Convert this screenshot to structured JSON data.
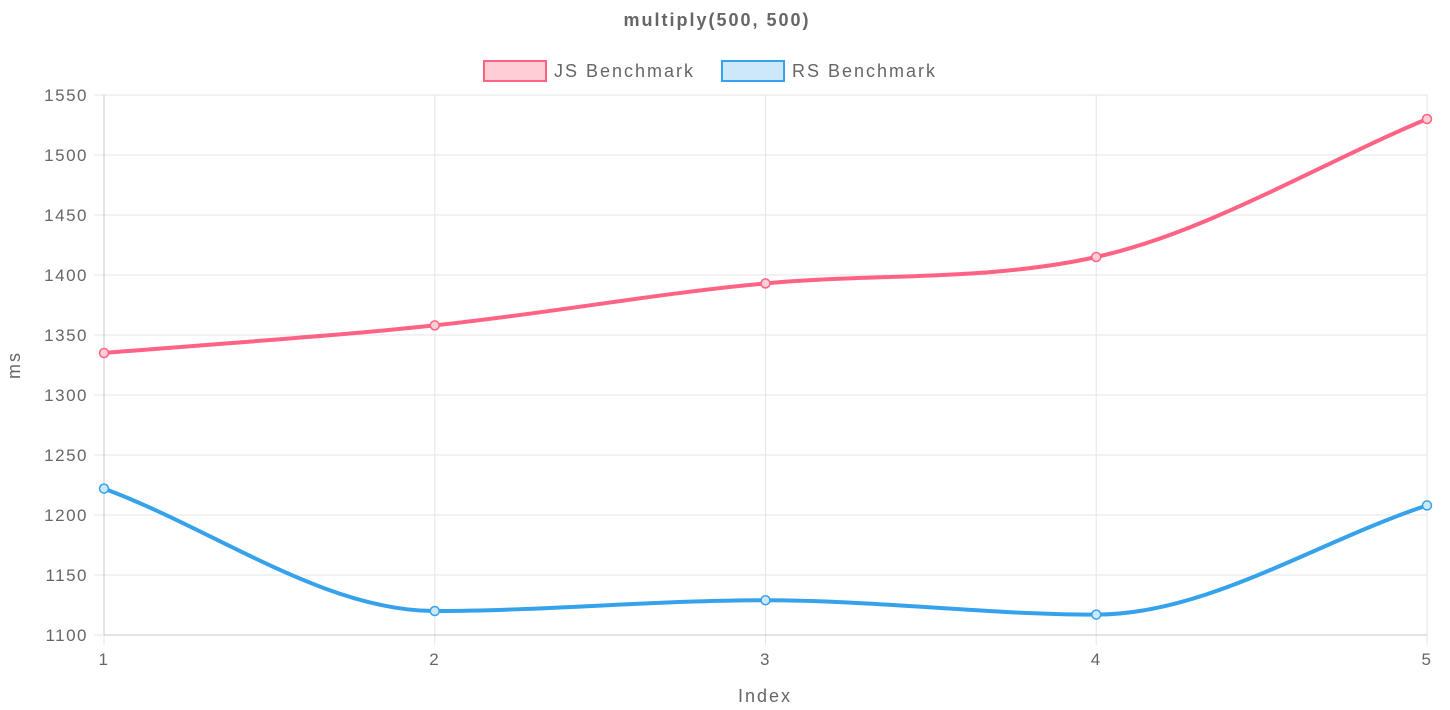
{
  "chart_data": {
    "type": "line",
    "title": "multiply(500, 500)",
    "xlabel": "Index",
    "ylabel": "ms",
    "categories": [
      "1",
      "2",
      "3",
      "4",
      "5"
    ],
    "ylim": [
      1100,
      1550
    ],
    "yticks": [
      "1550",
      "1500",
      "1450",
      "1400",
      "1350",
      "1300",
      "1250",
      "1200",
      "1150",
      "1100"
    ],
    "grid": true,
    "legend_position": "top-center",
    "series": [
      {
        "name": "JS Benchmark",
        "values": [
          1335,
          1358,
          1393,
          1415,
          1530
        ],
        "color": "#ff6384",
        "fill": "#ffcdd6"
      },
      {
        "name": "RS Benchmark",
        "values": [
          1222,
          1120,
          1129,
          1117,
          1208
        ],
        "color": "#36a2eb",
        "fill": "#cde8fa"
      }
    ]
  }
}
